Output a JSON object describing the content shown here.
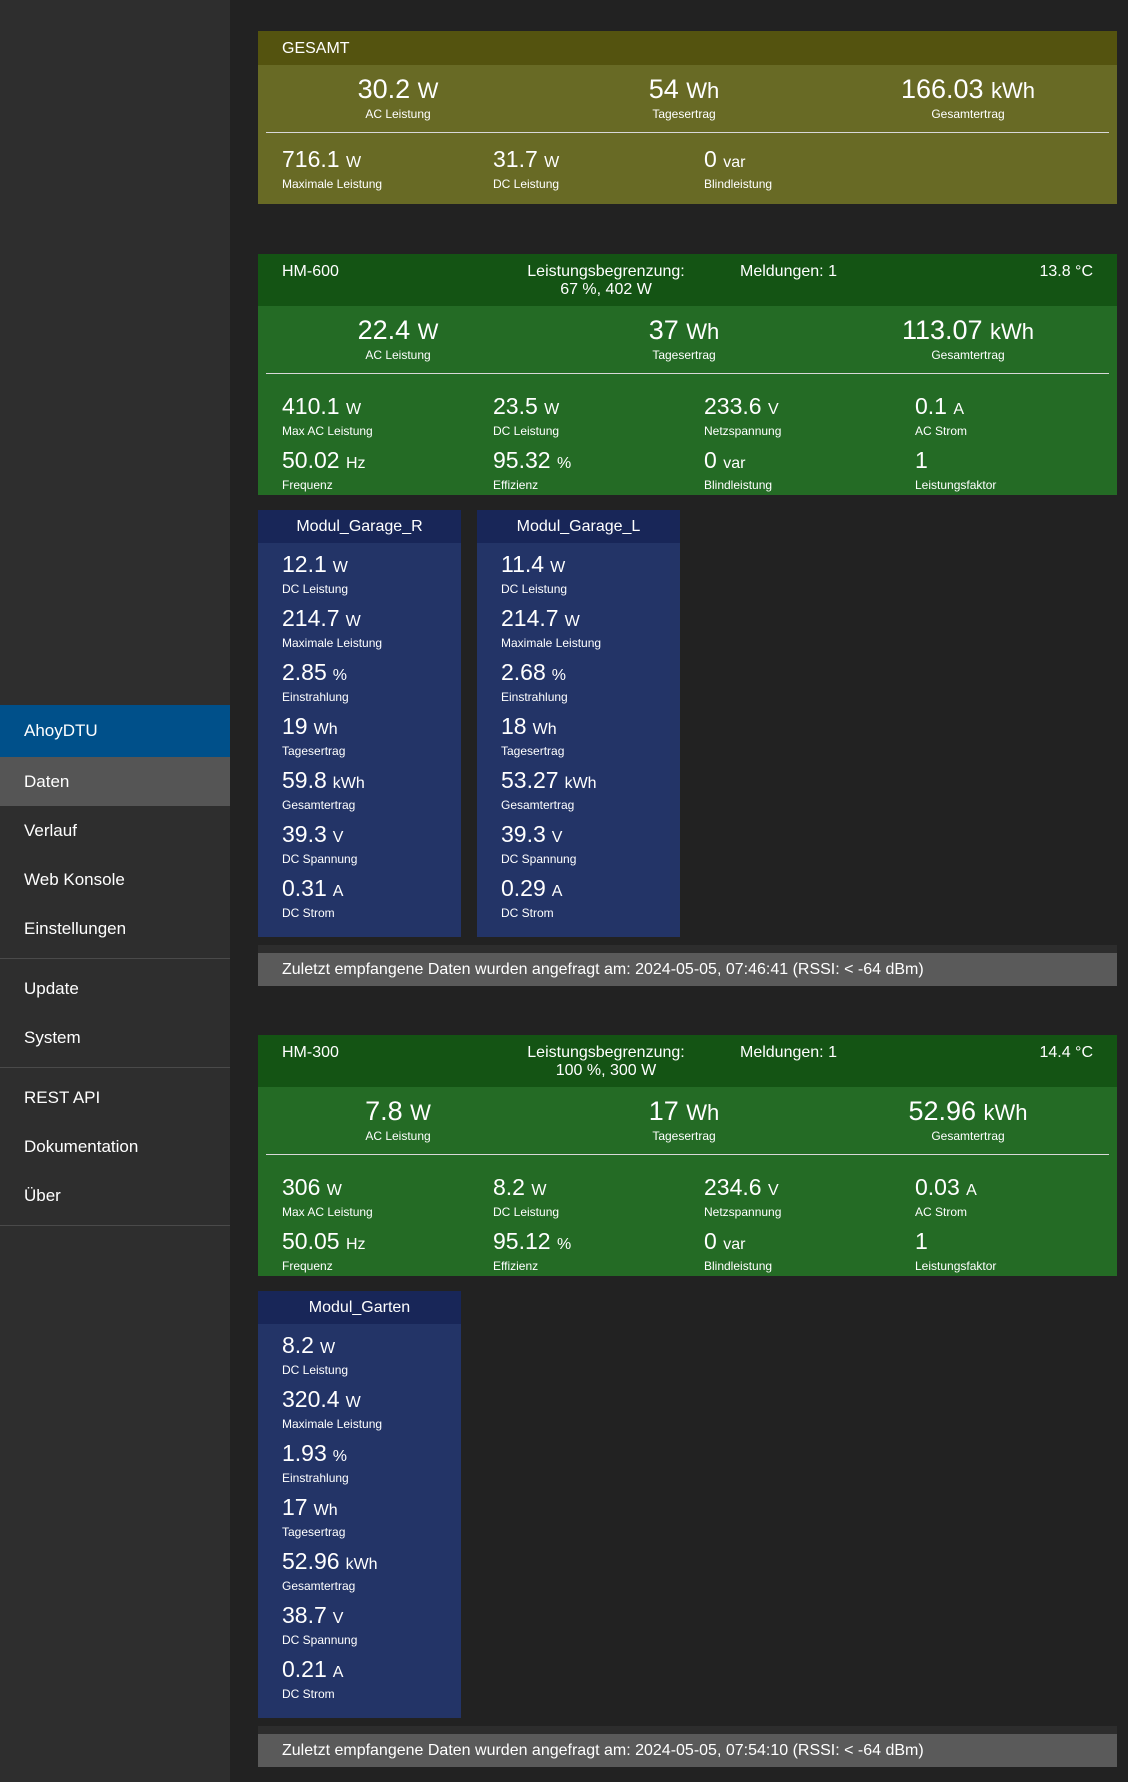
{
  "nav": {
    "brand": "AhoyDTU",
    "items": [
      "Daten",
      "Verlauf",
      "Web Konsole",
      "Einstellungen"
    ],
    "items2": [
      "Update",
      "System"
    ],
    "items3": [
      "REST API",
      "Dokumentation",
      "Über"
    ]
  },
  "total": {
    "title": "GESAMT",
    "row1": [
      {
        "value": "30.2",
        "unit": "W",
        "label": "AC Leistung"
      },
      {
        "value": "54",
        "unit": "Wh",
        "label": "Tagesertrag"
      },
      {
        "value": "166.03",
        "unit": "kWh",
        "label": "Gesamtertrag"
      }
    ],
    "row2": [
      {
        "value": "716.1",
        "unit": "W",
        "label": "Maximale Leistung"
      },
      {
        "value": "31.7",
        "unit": "W",
        "label": "DC Leistung"
      },
      {
        "value": "0",
        "unit": "var",
        "label": "Blindleistung"
      }
    ]
  },
  "inverters": [
    {
      "name": "HM-600",
      "limit_label": "Leistungsbegrenzung:",
      "limit_value": "67 %, 402 W",
      "messages": "Meldungen: 1",
      "temp": "13.8 °C",
      "row1": [
        {
          "value": "22.4",
          "unit": "W",
          "label": "AC Leistung"
        },
        {
          "value": "37",
          "unit": "Wh",
          "label": "Tagesertrag"
        },
        {
          "value": "113.07",
          "unit": "kWh",
          "label": "Gesamtertrag"
        }
      ],
      "row2": [
        {
          "value": "410.1",
          "unit": "W",
          "label": "Max AC Leistung"
        },
        {
          "value": "23.5",
          "unit": "W",
          "label": "DC Leistung"
        },
        {
          "value": "233.6",
          "unit": "V",
          "label": "Netzspannung"
        },
        {
          "value": "0.1",
          "unit": "A",
          "label": "AC Strom"
        }
      ],
      "row3": [
        {
          "value": "50.02",
          "unit": "Hz",
          "label": "Frequenz"
        },
        {
          "value": "95.32",
          "unit": "%",
          "label": "Effizienz"
        },
        {
          "value": "0",
          "unit": "var",
          "label": "Blindleistung"
        },
        {
          "value": "1",
          "unit": "",
          "label": "Leistungsfaktor"
        }
      ],
      "modules": [
        {
          "name": "Modul_Garage_R",
          "values": [
            {
              "value": "12.1",
              "unit": "W",
              "label": "DC Leistung"
            },
            {
              "value": "214.7",
              "unit": "W",
              "label": "Maximale Leistung"
            },
            {
              "value": "2.85",
              "unit": "%",
              "label": "Einstrahlung"
            },
            {
              "value": "19",
              "unit": "Wh",
              "label": "Tagesertrag"
            },
            {
              "value": "59.8",
              "unit": "kWh",
              "label": "Gesamtertrag"
            },
            {
              "value": "39.3",
              "unit": "V",
              "label": "DC Spannung"
            },
            {
              "value": "0.31",
              "unit": "A",
              "label": "DC Strom"
            }
          ]
        },
        {
          "name": "Modul_Garage_L",
          "values": [
            {
              "value": "11.4",
              "unit": "W",
              "label": "DC Leistung"
            },
            {
              "value": "214.7",
              "unit": "W",
              "label": "Maximale Leistung"
            },
            {
              "value": "2.68",
              "unit": "%",
              "label": "Einstrahlung"
            },
            {
              "value": "18",
              "unit": "Wh",
              "label": "Tagesertrag"
            },
            {
              "value": "53.27",
              "unit": "kWh",
              "label": "Gesamtertrag"
            },
            {
              "value": "39.3",
              "unit": "V",
              "label": "DC Spannung"
            },
            {
              "value": "0.29",
              "unit": "A",
              "label": "DC Strom"
            }
          ]
        }
      ],
      "status": "Zuletzt empfangene Daten wurden angefragt am: 2024-05-05, 07:46:41 (RSSI: < -64 dBm)"
    },
    {
      "name": "HM-300",
      "limit_label": "Leistungsbegrenzung:",
      "limit_value": "100 %, 300 W",
      "messages": "Meldungen: 1",
      "temp": "14.4 °C",
      "row1": [
        {
          "value": "7.8",
          "unit": "W",
          "label": "AC Leistung"
        },
        {
          "value": "17",
          "unit": "Wh",
          "label": "Tagesertrag"
        },
        {
          "value": "52.96",
          "unit": "kWh",
          "label": "Gesamtertrag"
        }
      ],
      "row2": [
        {
          "value": "306",
          "unit": "W",
          "label": "Max AC Leistung"
        },
        {
          "value": "8.2",
          "unit": "W",
          "label": "DC Leistung"
        },
        {
          "value": "234.6",
          "unit": "V",
          "label": "Netzspannung"
        },
        {
          "value": "0.03",
          "unit": "A",
          "label": "AC Strom"
        }
      ],
      "row3": [
        {
          "value": "50.05",
          "unit": "Hz",
          "label": "Frequenz"
        },
        {
          "value": "95.12",
          "unit": "%",
          "label": "Effizienz"
        },
        {
          "value": "0",
          "unit": "var",
          "label": "Blindleistung"
        },
        {
          "value": "1",
          "unit": "",
          "label": "Leistungsfaktor"
        }
      ],
      "modules": [
        {
          "name": "Modul_Garten",
          "values": [
            {
              "value": "8.2",
              "unit": "W",
              "label": "DC Leistung"
            },
            {
              "value": "320.4",
              "unit": "W",
              "label": "Maximale Leistung"
            },
            {
              "value": "1.93",
              "unit": "%",
              "label": "Einstrahlung"
            },
            {
              "value": "17",
              "unit": "Wh",
              "label": "Tagesertrag"
            },
            {
              "value": "52.96",
              "unit": "kWh",
              "label": "Gesamtertrag"
            },
            {
              "value": "38.7",
              "unit": "V",
              "label": "DC Spannung"
            },
            {
              "value": "0.21",
              "unit": "A",
              "label": "DC Strom"
            }
          ]
        }
      ],
      "status": "Zuletzt empfangene Daten wurden angefragt am: 2024-05-05, 07:54:10 (RSSI: < -64 dBm)"
    }
  ]
}
